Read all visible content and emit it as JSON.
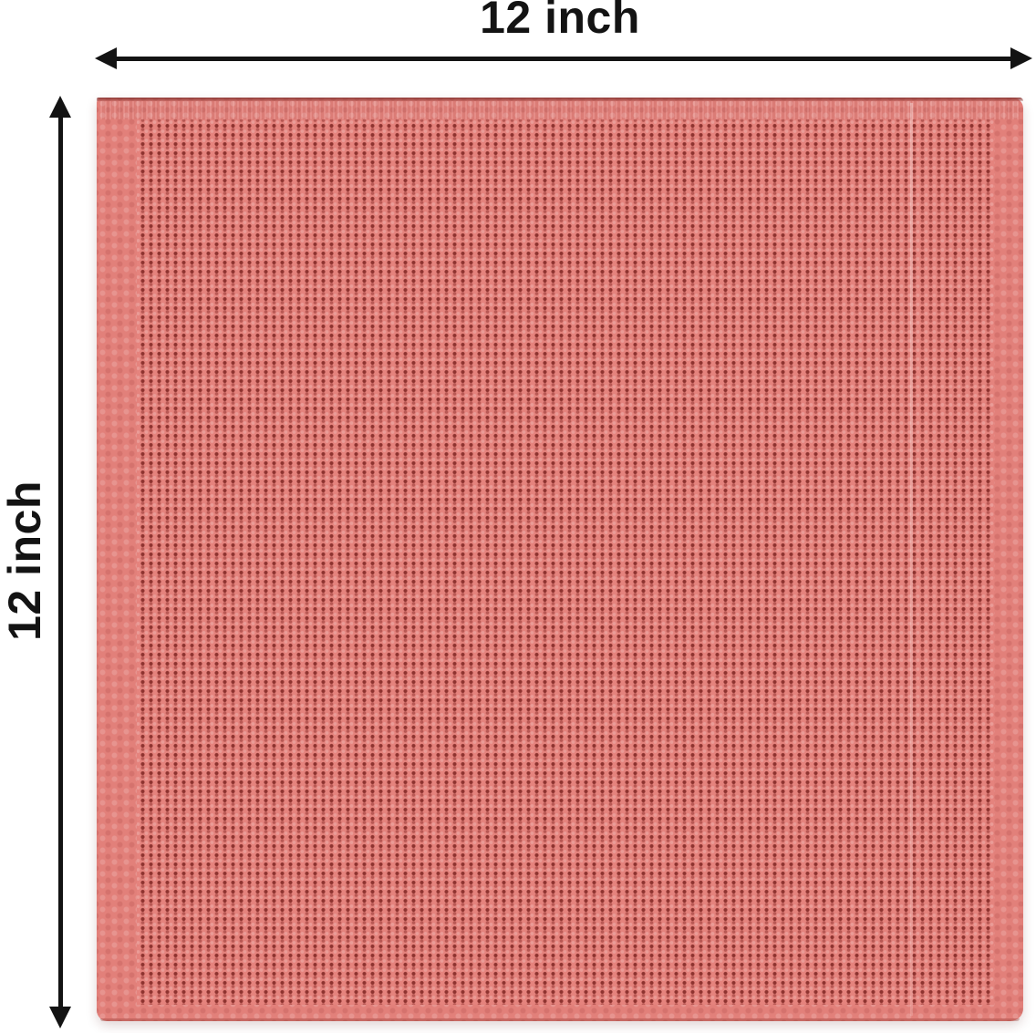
{
  "labels": {
    "width": "12 inch",
    "height": "12 inch"
  },
  "object": {
    "name": "coral waffle-weave cloth swatch"
  },
  "colors": {
    "background": "#ffffff",
    "text": "#131313",
    "arrow": "#131313",
    "cloth_base": "#e2807a",
    "cloth_pattern_area": "#e5837d",
    "cloth_dot": "#761c1a",
    "cloth_hem": "#8e3a37"
  }
}
